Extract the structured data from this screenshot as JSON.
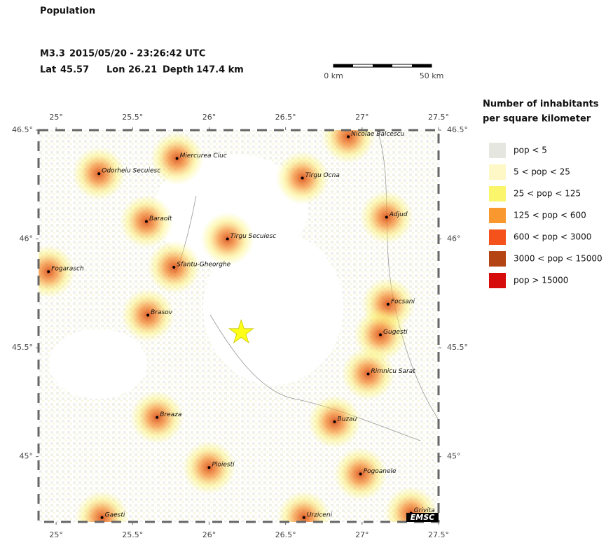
{
  "title": "Population",
  "event": {
    "magnitude": "M3.3",
    "datetime": "2015/05/20 - 23:26:42 UTC",
    "lat_label": "Lat",
    "lat": 45.57,
    "lon_label": "Lon",
    "lon": 26.21,
    "depth_label": "Depth",
    "depth": "147.4 km"
  },
  "scale_bar": {
    "start": "0 km",
    "end": "50 km"
  },
  "map": {
    "lonlim": [
      24.885,
      27.5
    ],
    "latlim": [
      44.7,
      46.5
    ],
    "lonticks": [
      {
        "value": 25,
        "label": "25°"
      },
      {
        "value": 25.5,
        "label": "25.5°"
      },
      {
        "value": 26,
        "label": "26°"
      },
      {
        "value": 26.5,
        "label": "26.5°"
      },
      {
        "value": 27,
        "label": "27°"
      },
      {
        "value": 27.5,
        "label": "27.5°"
      }
    ],
    "latticks": [
      {
        "value": 45,
        "label": "45°"
      },
      {
        "value": 45.5,
        "label": "45.5°"
      },
      {
        "value": 46,
        "label": "46°"
      },
      {
        "value": 46.5,
        "label": "46.5°"
      }
    ],
    "cities": [
      {
        "name": "Nicolae Balcescu",
        "lon": 26.91,
        "lat": 46.47
      },
      {
        "name": "Miercurea Ciuc",
        "lon": 25.79,
        "lat": 46.37
      },
      {
        "name": "Odorheiu Secuiesc",
        "lon": 25.28,
        "lat": 46.3
      },
      {
        "name": "Tirgu Ocna",
        "lon": 26.61,
        "lat": 46.28
      },
      {
        "name": "Adjud",
        "lon": 27.16,
        "lat": 46.1
      },
      {
        "name": "Baraolt",
        "lon": 25.59,
        "lat": 46.08
      },
      {
        "name": "Tirgu Secuiesc",
        "lon": 26.12,
        "lat": 46.0
      },
      {
        "name": "Sfantu-Gheorghe",
        "lon": 25.77,
        "lat": 45.87
      },
      {
        "name": "Fogarasch",
        "lon": 24.95,
        "lat": 45.85
      },
      {
        "name": "Focsani",
        "lon": 27.17,
        "lat": 45.7
      },
      {
        "name": "Brasov",
        "lon": 25.6,
        "lat": 45.65
      },
      {
        "name": "Gugesti",
        "lon": 27.12,
        "lat": 45.56
      },
      {
        "name": "Rimnicu Sarat",
        "lon": 27.04,
        "lat": 45.38
      },
      {
        "name": "Breaza",
        "lon": 25.66,
        "lat": 45.18
      },
      {
        "name": "Buzau",
        "lon": 26.82,
        "lat": 45.16
      },
      {
        "name": "Ploiesti",
        "lon": 26.0,
        "lat": 44.95
      },
      {
        "name": "Pogoanele",
        "lon": 26.99,
        "lat": 44.92
      },
      {
        "name": "Gaesti",
        "lon": 25.3,
        "lat": 44.72
      },
      {
        "name": "Urziceni",
        "lon": 26.62,
        "lat": 44.72
      },
      {
        "name": "Grivita",
        "lon": 27.32,
        "lat": 44.74
      }
    ],
    "logo": "EMSC"
  },
  "legend": {
    "title_line1": "Number of inhabitants",
    "title_line2": "per square kilometer",
    "items": [
      {
        "label": "pop < 5",
        "color": "#e6e6e1"
      },
      {
        "label": "5 < pop < 25",
        "color": "#fdf8c6"
      },
      {
        "label": "25 < pop < 125",
        "color": "#fbf56b"
      },
      {
        "label": "125 < pop < 600",
        "color": "#f8982f"
      },
      {
        "label": "600 < pop < 3000",
        "color": "#f5521b"
      },
      {
        "label": "3000 < pop < 15000",
        "color": "#b44411"
      },
      {
        "label": "pop > 15000",
        "color": "#d60b0b"
      }
    ]
  }
}
